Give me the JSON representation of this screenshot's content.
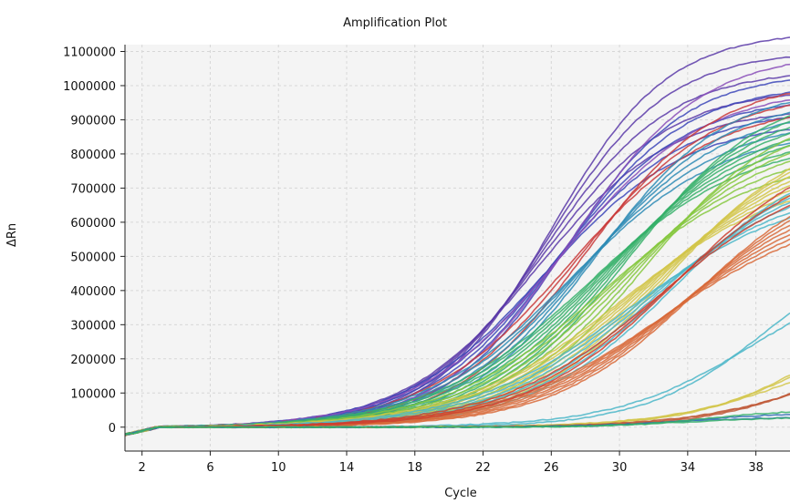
{
  "chart_data": {
    "type": "line",
    "title": "Amplification Plot",
    "xlabel": "Cycle",
    "ylabel": "ΔRn",
    "xlim": [
      1,
      40
    ],
    "ylim": [
      -70000,
      1120000
    ],
    "xticks": [
      2,
      6,
      10,
      14,
      18,
      22,
      26,
      30,
      34,
      38
    ],
    "yticks": [
      0,
      100000,
      200000,
      300000,
      400000,
      500000,
      600000,
      700000,
      800000,
      900000,
      1000000,
      1100000
    ],
    "grid": true,
    "legend": "none",
    "series_groups": [
      {
        "color": "#5a3aa8",
        "count": 5,
        "plateau_min": 940000,
        "plateau_max": 1160000,
        "midpoint_min": 25.2,
        "midpoint_max": 26.0,
        "slope_min": 3.4,
        "slope_max": 3.9
      },
      {
        "color": "#3c46b8",
        "count": 5,
        "plateau_min": 900000,
        "plateau_max": 1040000,
        "midpoint_min": 25.6,
        "midpoint_max": 26.8,
        "slope_min": 3.5,
        "slope_max": 4.1
      },
      {
        "color": "#8a4fb8",
        "count": 2,
        "plateau_min": 1000000,
        "plateau_max": 1100000,
        "midpoint_min": 26.5,
        "midpoint_max": 27.2,
        "slope_min": 3.8,
        "slope_max": 4.2
      },
      {
        "color": "#c93a3a",
        "count": 3,
        "plateau_min": 950000,
        "plateau_max": 1020000,
        "midpoint_min": 27.0,
        "midpoint_max": 28.0,
        "slope_min": 3.8,
        "slope_max": 4.2
      },
      {
        "color": "#2e8bb5",
        "count": 5,
        "plateau_min": 880000,
        "plateau_max": 1000000,
        "midpoint_min": 27.2,
        "midpoint_max": 28.6,
        "slope_min": 3.8,
        "slope_max": 4.4
      },
      {
        "color": "#36b06a",
        "count": 8,
        "plateau_min": 850000,
        "plateau_max": 1000000,
        "midpoint_min": 28.2,
        "midpoint_max": 30.6,
        "slope_min": 4.0,
        "slope_max": 4.6
      },
      {
        "color": "#86c840",
        "count": 6,
        "plateau_min": 800000,
        "plateau_max": 950000,
        "midpoint_min": 29.0,
        "midpoint_max": 31.6,
        "slope_min": 4.0,
        "slope_max": 4.6
      },
      {
        "color": "#d2c64a",
        "count": 8,
        "plateau_min": 750000,
        "plateau_max": 900000,
        "midpoint_min": 30.2,
        "midpoint_max": 33.0,
        "slope_min": 4.2,
        "slope_max": 4.8
      },
      {
        "color": "#4bb6c8",
        "count": 6,
        "plateau_min": 700000,
        "plateau_max": 820000,
        "midpoint_min": 30.6,
        "midpoint_max": 33.2,
        "slope_min": 4.2,
        "slope_max": 4.8
      },
      {
        "color": "#d86a3a",
        "count": 7,
        "plateau_min": 650000,
        "plateau_max": 780000,
        "midpoint_min": 32.6,
        "midpoint_max": 34.4,
        "slope_min": 4.2,
        "slope_max": 4.8
      },
      {
        "color": "#cc3f2f",
        "count": 3,
        "plateau_min": 780000,
        "plateau_max": 860000,
        "midpoint_min": 32.4,
        "midpoint_max": 33.4,
        "slope_min": 4.4,
        "slope_max": 4.7
      },
      {
        "color": "#4bb6c8",
        "count": 2,
        "plateau_min": 480000,
        "plateau_max": 560000,
        "midpoint_min": 37.8,
        "midpoint_max": 38.6,
        "slope_min": 3.6,
        "slope_max": 4.0
      },
      {
        "color": "#d2c64a",
        "count": 3,
        "plateau_min": 300000,
        "plateau_max": 420000,
        "midpoint_min": 41.0,
        "midpoint_max": 42.0,
        "slope_min": 3.6,
        "slope_max": 4.0
      },
      {
        "color": "#c05a3a",
        "count": 3,
        "plateau_min": 250000,
        "plateau_max": 320000,
        "midpoint_min": 42.0,
        "midpoint_max": 43.0,
        "slope_min": 3.6,
        "slope_max": 4.0
      },
      {
        "color": "#2e6bb5",
        "count": 2,
        "plateau_min": 30000,
        "plateau_max": 40000,
        "midpoint_min": 33.0,
        "midpoint_max": 34.0,
        "slope_min": 2.5,
        "slope_max": 3.0
      },
      {
        "color": "#36b06a",
        "count": 2,
        "plateau_min": 30000,
        "plateau_max": 50000,
        "midpoint_min": 34.0,
        "midpoint_max": 35.0,
        "slope_min": 2.5,
        "slope_max": 3.0
      }
    ]
  }
}
